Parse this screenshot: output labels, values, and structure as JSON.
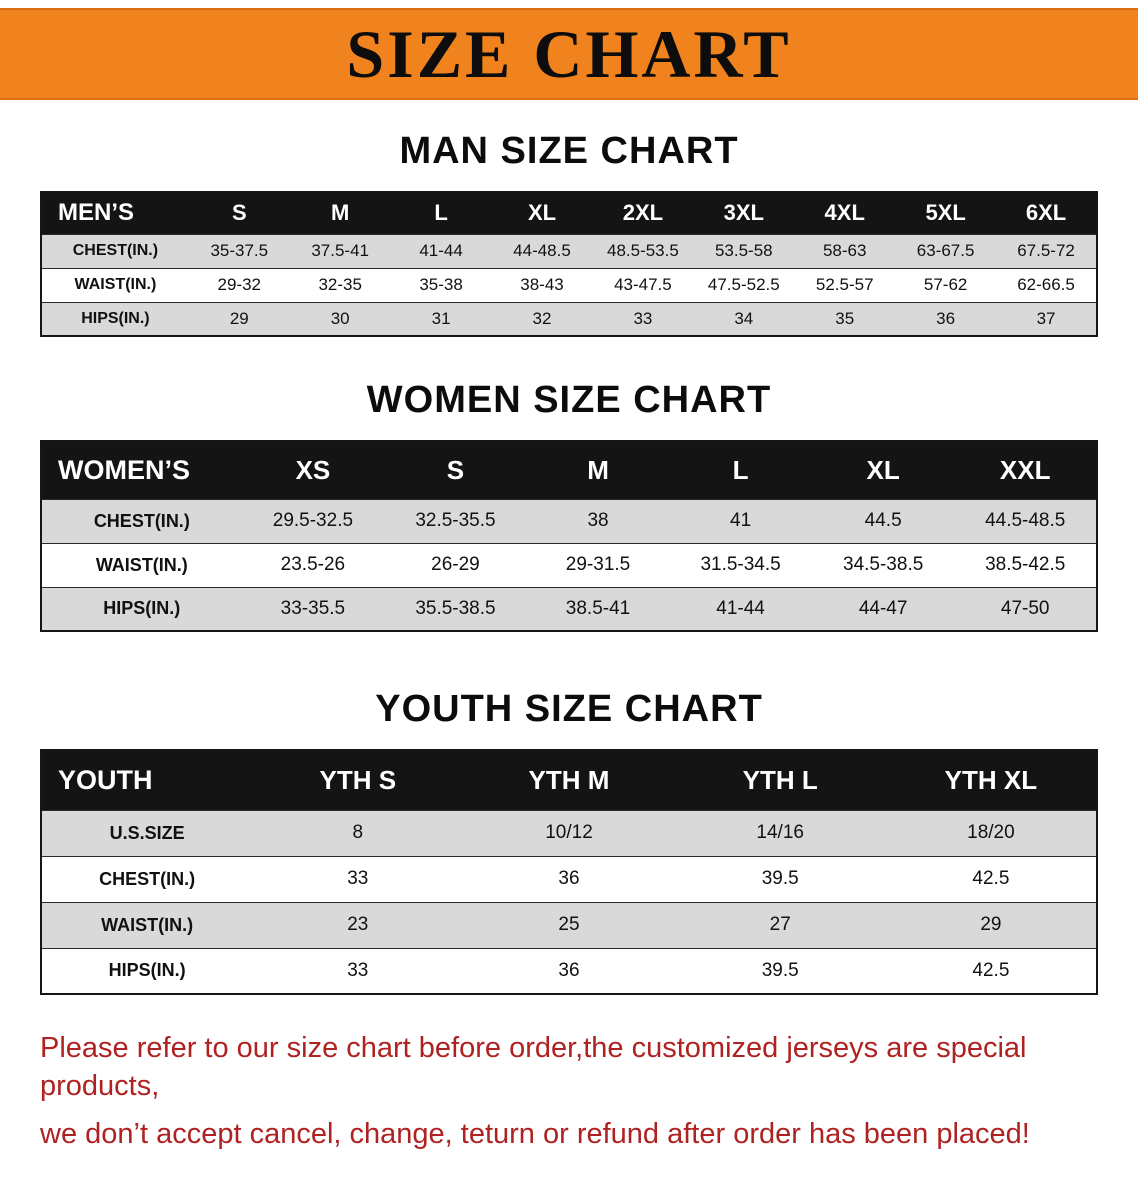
{
  "banner": {
    "title": "SIZE CHART"
  },
  "colors": {
    "banner_orange": "#f0831e",
    "table_header_black": "#141414",
    "row_gray": "#d9d9d9",
    "row_white": "#ffffff",
    "notice_red": "#b02222"
  },
  "sections": [
    {
      "heading": "MAN SIZE CHART",
      "table": {
        "header": [
          "MEN’S",
          "S",
          "M",
          "L",
          "XL",
          "2XL",
          "3XL",
          "4XL",
          "5XL",
          "6XL"
        ],
        "rows": [
          [
            "CHEST(IN.)",
            "35-37.5",
            "37.5-41",
            "41-44",
            "44-48.5",
            "48.5-53.5",
            "53.5-58",
            "58-63",
            "63-67.5",
            "67.5-72"
          ],
          [
            "WAIST(IN.)",
            "29-32",
            "32-35",
            "35-38",
            "38-43",
            "43-47.5",
            "47.5-52.5",
            "52.5-57",
            "57-62",
            "62-66.5"
          ],
          [
            "HIPS(IN.)",
            "29",
            "30",
            "31",
            "32",
            "33",
            "34",
            "35",
            "36",
            "37"
          ]
        ]
      }
    },
    {
      "heading": "WOMEN SIZE CHART",
      "table": {
        "header": [
          "WOMEN’S",
          "XS",
          "S",
          "M",
          "L",
          "XL",
          "XXL"
        ],
        "rows": [
          [
            "CHEST(IN.)",
            "29.5-32.5",
            "32.5-35.5",
            "38",
            "41",
            "44.5",
            "44.5-48.5"
          ],
          [
            "WAIST(IN.)",
            "23.5-26",
            "26-29",
            "29-31.5",
            "31.5-34.5",
            "34.5-38.5",
            "38.5-42.5"
          ],
          [
            "HIPS(IN.)",
            "33-35.5",
            "35.5-38.5",
            "38.5-41",
            "41-44",
            "44-47",
            "47-50"
          ]
        ]
      }
    },
    {
      "heading": "YOUTH SIZE CHART",
      "table": {
        "header": [
          "YOUTH",
          "YTH S",
          "YTH M",
          "YTH L",
          "YTH XL"
        ],
        "rows": [
          [
            "U.S.SIZE",
            "8",
            "10/12",
            "14/16",
            "18/20"
          ],
          [
            "CHEST(IN.)",
            "33",
            "36",
            "39.5",
            "42.5"
          ],
          [
            "WAIST(IN.)",
            "23",
            "25",
            "27",
            "29"
          ],
          [
            "HIPS(IN.)",
            "33",
            "36",
            "39.5",
            "42.5"
          ]
        ]
      }
    }
  ],
  "footer": {
    "lines": [
      "Please refer to our size chart before order,the customized jerseys are special products,",
      "we don’t accept cancel, change, teturn or refund after order has been placed!"
    ]
  }
}
